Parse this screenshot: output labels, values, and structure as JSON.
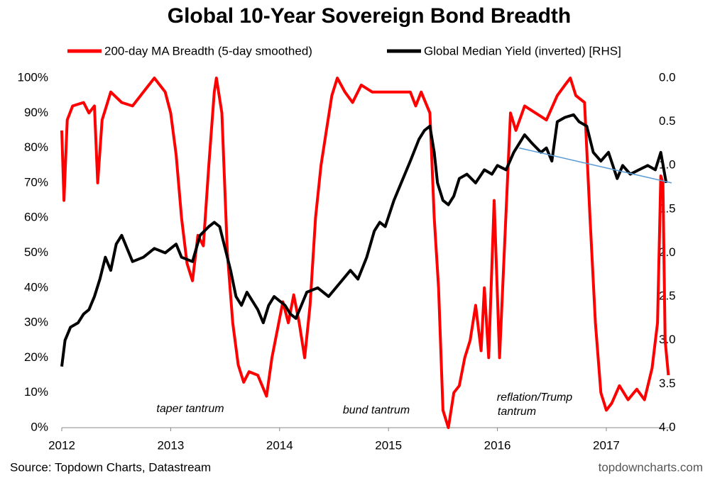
{
  "chart_data": {
    "type": "line",
    "title": "Global 10-Year Sovereign Bond Breadth",
    "source": "Source: Topdown Charts, Datastream",
    "watermark": "topdowncharts.com",
    "annotations": [
      "taper tantrum",
      "bund tantrum",
      "reflation/Trump",
      "tantrum"
    ],
    "xlim": [
      2012,
      2017.6
    ],
    "xticks": [
      2012,
      2013,
      2014,
      2015,
      2016,
      2017
    ],
    "ylim": [
      0,
      100
    ],
    "yticks": [
      {
        "value": 0,
        "label": "0%"
      },
      {
        "value": 10,
        "label": "10%"
      },
      {
        "value": 20,
        "label": "20%"
      },
      {
        "value": 30,
        "label": "30%"
      },
      {
        "value": 40,
        "label": "40%"
      },
      {
        "value": 50,
        "label": "50%"
      },
      {
        "value": 60,
        "label": "60%"
      },
      {
        "value": 70,
        "label": "70%"
      },
      {
        "value": 80,
        "label": "80%"
      },
      {
        "value": 90,
        "label": "90%"
      },
      {
        "value": 100,
        "label": "100%"
      }
    ],
    "y2lim": [
      4,
      0
    ],
    "y2ticks": [
      {
        "value": 0,
        "label": "0.0"
      },
      {
        "value": 0.5,
        "label": "0.5"
      },
      {
        "value": 1,
        "label": "1.0"
      },
      {
        "value": 1.5,
        "label": "1.5"
      },
      {
        "value": 2,
        "label": "2.0"
      },
      {
        "value": 2.5,
        "label": "2.5"
      },
      {
        "value": 3,
        "label": "3.0"
      },
      {
        "value": 3.5,
        "label": "3.5"
      },
      {
        "value": 4,
        "label": "4.0"
      }
    ],
    "series": [
      {
        "name": "200-day MA Breadth (5-day smoothed)",
        "color": "#ff0000",
        "x": [
          2012.0,
          2012.02,
          2012.05,
          2012.1,
          2012.2,
          2012.25,
          2012.3,
          2012.33,
          2012.37,
          2012.45,
          2012.55,
          2012.65,
          2012.75,
          2012.85,
          2012.95,
          2013.0,
          2013.05,
          2013.1,
          2013.15,
          2013.2,
          2013.25,
          2013.3,
          2013.35,
          2013.4,
          2013.42,
          2013.47,
          2013.52,
          2013.57,
          2013.62,
          2013.67,
          2013.72,
          2013.8,
          2013.88,
          2013.93,
          2013.98,
          2014.03,
          2014.08,
          2014.13,
          2014.18,
          2014.23,
          2014.28,
          2014.33,
          2014.38,
          2014.43,
          2014.48,
          2014.53,
          2014.6,
          2014.67,
          2014.75,
          2014.85,
          2014.95,
          2015.1,
          2015.2,
          2015.25,
          2015.3,
          2015.38,
          2015.42,
          2015.46,
          2015.5,
          2015.55,
          2015.6,
          2015.65,
          2015.7,
          2015.75,
          2015.8,
          2015.85,
          2015.88,
          2015.92,
          2015.97,
          2016.02,
          2016.07,
          2016.12,
          2016.17,
          2016.25,
          2016.35,
          2016.45,
          2016.55,
          2016.62,
          2016.67,
          2016.72,
          2016.8,
          2016.85,
          2016.9,
          2016.95,
          2017.0,
          2017.05,
          2017.12,
          2017.2,
          2017.28,
          2017.35,
          2017.42,
          2017.47,
          2017.5,
          2017.52,
          2017.54,
          2017.57
        ],
        "values": [
          85,
          65,
          88,
          92,
          93,
          90,
          92,
          70,
          88,
          96,
          93,
          92,
          96,
          100,
          96,
          90,
          78,
          60,
          47,
          42,
          55,
          52,
          75,
          96,
          100,
          90,
          50,
          30,
          18,
          13,
          16,
          15,
          9,
          20,
          28,
          36,
          30,
          38,
          30,
          20,
          35,
          60,
          75,
          85,
          95,
          100,
          96,
          93,
          98,
          96,
          96,
          96,
          96,
          92,
          96,
          90,
          60,
          40,
          5,
          0,
          10,
          12,
          20,
          25,
          35,
          22,
          40,
          20,
          65,
          20,
          55,
          90,
          85,
          92,
          90,
          88,
          95,
          98,
          100,
          95,
          93,
          60,
          30,
          10,
          5,
          7,
          12,
          8,
          11,
          8,
          17,
          30,
          72,
          70,
          25,
          15
        ]
      },
      {
        "name": "Global Median Yield (inverted) [RHS]",
        "color": "#000000",
        "axis": "y2",
        "x": [
          2012.0,
          2012.03,
          2012.08,
          2012.15,
          2012.2,
          2012.25,
          2012.3,
          2012.35,
          2012.4,
          2012.45,
          2012.5,
          2012.55,
          2012.6,
          2012.65,
          2012.75,
          2012.85,
          2012.95,
          2013.05,
          2013.1,
          2013.2,
          2013.27,
          2013.35,
          2013.4,
          2013.45,
          2013.5,
          2013.55,
          2013.6,
          2013.65,
          2013.7,
          2013.8,
          2013.85,
          2013.9,
          2013.95,
          2014.05,
          2014.1,
          2014.15,
          2014.2,
          2014.25,
          2014.35,
          2014.45,
          2014.55,
          2014.65,
          2014.72,
          2014.8,
          2014.87,
          2014.92,
          2014.97,
          2015.05,
          2015.15,
          2015.2,
          2015.28,
          2015.33,
          2015.38,
          2015.42,
          2015.45,
          2015.5,
          2015.55,
          2015.6,
          2015.65,
          2015.72,
          2015.8,
          2015.88,
          2015.95,
          2016.0,
          2016.08,
          2016.15,
          2016.25,
          2016.32,
          2016.4,
          2016.45,
          2016.5,
          2016.55,
          2016.62,
          2016.7,
          2016.75,
          2016.82,
          2016.88,
          2016.95,
          2017.02,
          2017.1,
          2017.15,
          2017.22,
          2017.3,
          2017.38,
          2017.45,
          2017.5,
          2017.55
        ],
        "values": [
          3.3,
          3.0,
          2.85,
          2.8,
          2.7,
          2.65,
          2.5,
          2.3,
          2.05,
          2.2,
          1.9,
          1.8,
          1.95,
          2.1,
          2.05,
          1.95,
          2.0,
          1.9,
          2.05,
          2.1,
          1.8,
          1.7,
          1.65,
          1.7,
          1.95,
          2.2,
          2.5,
          2.6,
          2.45,
          2.65,
          2.8,
          2.6,
          2.5,
          2.6,
          2.7,
          2.75,
          2.6,
          2.45,
          2.4,
          2.5,
          2.35,
          2.2,
          2.3,
          2.05,
          1.75,
          1.65,
          1.7,
          1.4,
          1.1,
          0.95,
          0.7,
          0.6,
          0.55,
          0.85,
          1.2,
          1.4,
          1.45,
          1.35,
          1.15,
          1.1,
          1.2,
          1.05,
          1.1,
          1.0,
          1.05,
          0.85,
          0.65,
          0.75,
          0.85,
          0.8,
          0.95,
          0.5,
          0.45,
          0.42,
          0.5,
          0.55,
          0.85,
          0.95,
          0.85,
          1.15,
          1.0,
          1.1,
          1.05,
          1.0,
          1.05,
          0.85,
          1.2
        ]
      }
    ],
    "trend_line": {
      "color": "#5b9bd5",
      "x": [
        2016.2,
        2017.6
      ],
      "values": [
        0.8,
        1.2
      ]
    }
  }
}
